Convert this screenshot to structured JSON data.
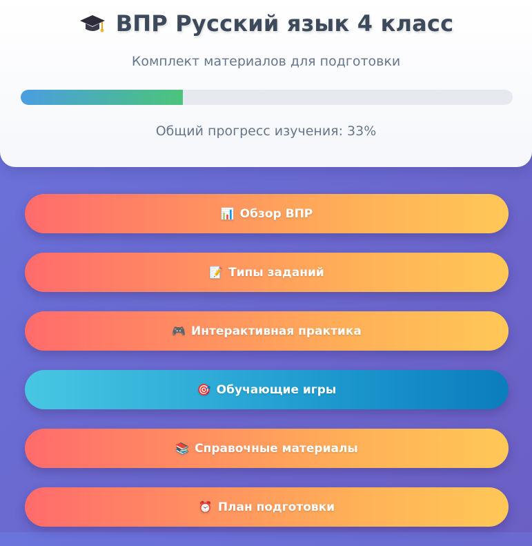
{
  "header": {
    "title": "ВПР Русский язык 4 класс",
    "subtitle": "Комплект материалов для подготовки",
    "progress_percent": 33,
    "progress_text": "Общий прогресс изучения: 33%",
    "icon": "graduation-cap-icon"
  },
  "nav": {
    "items": [
      {
        "icon": "📊",
        "icon_name": "bar-chart-icon",
        "label": "Обзор ВПР",
        "active": false
      },
      {
        "icon": "📝",
        "icon_name": "memo-icon",
        "label": "Типы заданий",
        "active": false
      },
      {
        "icon": "🎮",
        "icon_name": "gamepad-icon",
        "label": "Интерактивная практика",
        "active": false
      },
      {
        "icon": "🎯",
        "icon_name": "target-icon",
        "label": "Обучающие игры",
        "active": true
      },
      {
        "icon": "📚",
        "icon_name": "books-icon",
        "label": "Справочные материалы",
        "active": false
      },
      {
        "icon": "⏰",
        "icon_name": "alarm-clock-icon",
        "label": "План подготовки",
        "active": false
      }
    ]
  },
  "colors": {
    "accent_inactive": "#ff6b6b",
    "accent_active": "#1f9bd0",
    "progress_start": "#4a9ee0",
    "progress_end": "#4cc47a"
  }
}
